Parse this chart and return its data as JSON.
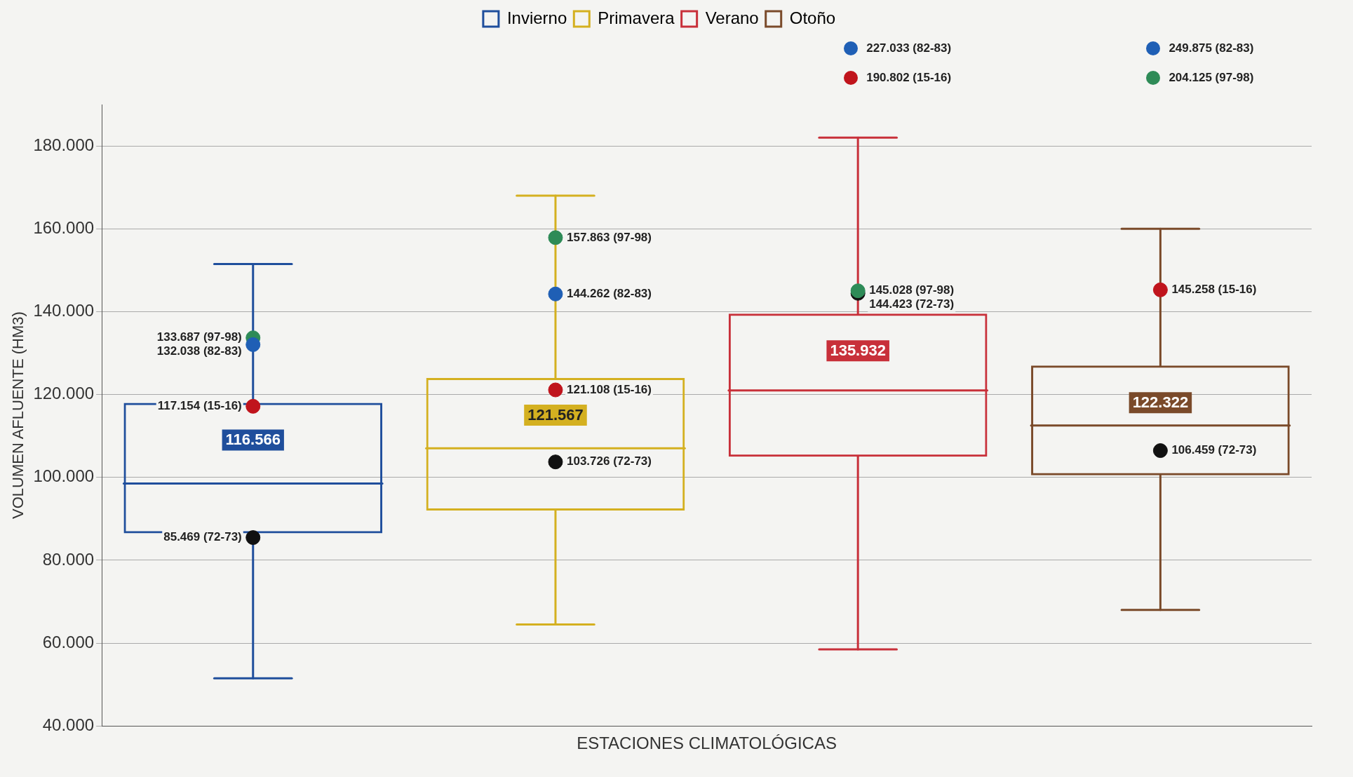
{
  "chart_data": {
    "type": "box",
    "xlabel": "ESTACIONES CLIMATOLÓGICAS",
    "ylabel": "VOLUMEN AFLUENTE (HM3)",
    "categories": [
      null,
      null,
      null,
      null
    ],
    "ylim": [
      40000,
      190000
    ],
    "yticks": [
      {
        "value": 40000,
        "label": "40.000"
      },
      {
        "value": 60000,
        "label": "60.000"
      },
      {
        "value": 80000,
        "label": "80.000"
      },
      {
        "value": 100000,
        "label": "100.000"
      },
      {
        "value": 120000,
        "label": "120.000"
      },
      {
        "value": 140000,
        "label": "140.000"
      },
      {
        "value": 160000,
        "label": "160.000"
      },
      {
        "value": 180000,
        "label": "180.000"
      }
    ],
    "grid": "y",
    "legend": "top",
    "tick_labels": "y",
    "series": [
      {
        "name": "Invierno",
        "color": "#1f4e9c",
        "boxes": [
          {
            "low": 51500,
            "q1": 86500,
            "median": 98500,
            "q3": 118000,
            "high": 151500
          },
          null,
          null,
          null
        ]
      },
      {
        "name": "Primavera",
        "color": "#d4b020",
        "boxes": [
          null,
          {
            "low": 64500,
            "q1": 92000,
            "median": 107000,
            "q3": 124000,
            "high": 168000
          },
          null,
          null
        ]
      },
      {
        "name": "Verano",
        "color": "#c8303a",
        "boxes": [
          null,
          null,
          {
            "low": 58500,
            "q1": 105000,
            "median": 121000,
            "q3": 139500,
            "high": 182000
          },
          null
        ]
      },
      {
        "name": "Otoño",
        "color": "#7a4a2a",
        "boxes": [
          null,
          null,
          null,
          {
            "low": 68000,
            "q1": 100500,
            "median": 112500,
            "q3": 127000,
            "high": 160000
          }
        ]
      },
      {
        "type": "scatter",
        "color": "#1f5fb5",
        "values": [
          132038,
          144262,
          null,
          null
        ],
        "value_labels": [
          "132.038 (82-83)",
          "144.262 (82-83)",
          null,
          null
        ]
      },
      {
        "type": "scatter",
        "color": "#2e8b57",
        "values": [
          133687,
          157863,
          145028,
          null
        ],
        "value_labels": [
          "133.687 (97-98)",
          "157.863 (97-98)",
          "145.028 (97-98)",
          null
        ]
      },
      {
        "type": "scatter",
        "color": "#c0141c",
        "values": [
          117154,
          121108,
          null,
          145258
        ],
        "value_labels": [
          "117.154 (15-16)",
          "121.108 (15-16)",
          null,
          "145.258 (15-16)"
        ]
      },
      {
        "type": "scatter",
        "color": "#111111",
        "values": [
          85469,
          103726,
          144423,
          106459
        ],
        "value_labels": [
          "85.469 (72-73)",
          "103.726 (72-73)",
          "144.423 (72-73)",
          "106.459 (72-73)"
        ]
      }
    ],
    "marker": "circle",
    "annotations": [
      "116.566",
      "121.567",
      "135.932",
      "122.322",
      "227.033 (82-83)",
      "190.802 (15-16)",
      "249.875 (82-83)",
      "204.125 (97-98)"
    ]
  }
}
